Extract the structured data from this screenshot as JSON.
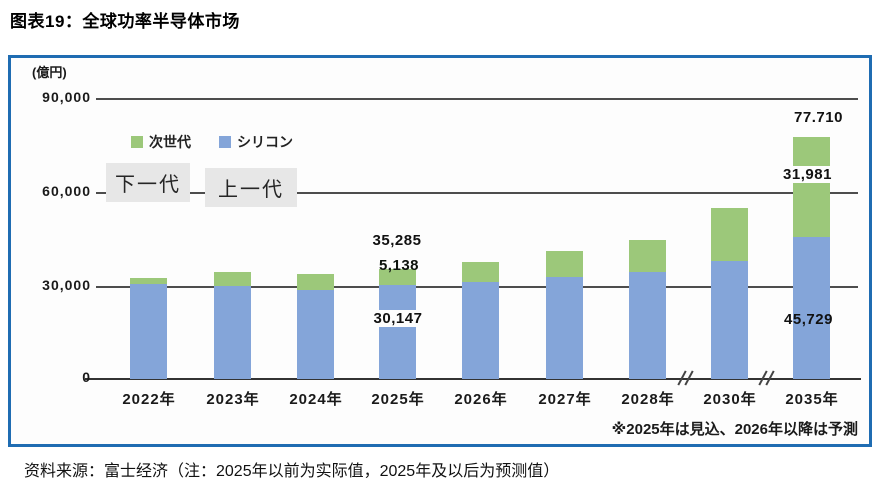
{
  "title": "图表19：全球功率半导体市场",
  "source": "资料来源：富士经济（注：2025年以前为实际值，2025年及以后为预测值）",
  "chart": {
    "unit_label": "(億円)",
    "note": "※2025年は見込、2026年以降は予測",
    "legend": [
      {
        "label": "次世代",
        "color": "#9cc87a"
      },
      {
        "label": "シリコン",
        "color": "#84a5d9"
      }
    ],
    "overlays": [
      {
        "label": "下一代"
      },
      {
        "label": "上一代"
      }
    ],
    "accent_border_color": "#1f6cb2"
  },
  "chart_data": {
    "type": "bar",
    "stacked": true,
    "title": "全球功率半导体市场",
    "xlabel": "",
    "ylabel": "(億円)",
    "ylim": [
      0,
      90000
    ],
    "grid": true,
    "legend_position": "top-left",
    "categories": [
      "2022年",
      "2023年",
      "2024年",
      "2025年",
      "2026年",
      "2027年",
      "2028年",
      "2030年",
      "2035年"
    ],
    "series": [
      {
        "name": "シリコン",
        "color": "#84a5d9",
        "values": [
          30500,
          30000,
          28600,
          30147,
          31300,
          32900,
          34500,
          37900,
          45729
        ]
      },
      {
        "name": "次世代",
        "color": "#9cc87a",
        "values": [
          2000,
          4300,
          5100,
          5138,
          6400,
          8300,
          10200,
          17000,
          31981
        ]
      }
    ],
    "y_ticks": [
      "90,000",
      "60,000",
      "30,000",
      "0"
    ],
    "axis_breaks": [
      "between 2028年 and 2030年",
      "between 2030年 and 2035年"
    ],
    "annotations": {
      "y2025_total": "35,285",
      "y2025_next": "5,138",
      "y2025_silicon": "30,147",
      "y2035_total": "77.710",
      "y2035_next": "31,981",
      "y2035_silicon": "45,729"
    }
  }
}
